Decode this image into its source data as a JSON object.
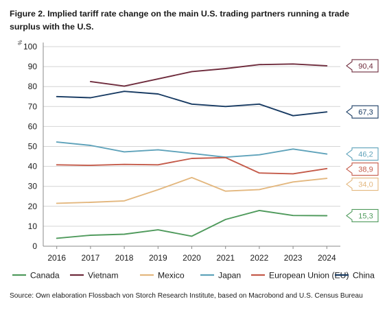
{
  "title": "Figure 2. Implied tariff rate change on the main U.S. trading partners running a trade surplus with the U.S.",
  "source": "Source: Own elaboration Flossbach von Storch Research Institute, based on Macrobond and U.S. Census Bureau",
  "chart_data": {
    "type": "line",
    "x": [
      2016,
      2017,
      2018,
      2019,
      2020,
      2021,
      2022,
      2023,
      2024
    ],
    "ylabel": "%",
    "ylim": [
      0,
      100
    ],
    "yticks": [
      0,
      10,
      20,
      30,
      40,
      50,
      60,
      70,
      80,
      90,
      100
    ],
    "grid": true,
    "legend": "bottom",
    "series": [
      {
        "name": "Canada",
        "color": "#4f9a5c",
        "values": [
          4.0,
          5.5,
          6.0,
          8.2,
          5.0,
          13.4,
          17.9,
          15.4,
          15.3
        ],
        "end_label": "15,3"
      },
      {
        "name": "Vietnam",
        "color": "#6e2b3c",
        "values": [
          null,
          82.5,
          80.2,
          83.8,
          87.5,
          89.0,
          91.0,
          91.3,
          90.4
        ],
        "end_label": "90,4"
      },
      {
        "name": "Mexico",
        "color": "#e3b77e",
        "values": [
          21.5,
          22.0,
          22.7,
          28.3,
          34.4,
          27.6,
          28.4,
          32.2,
          34.0
        ],
        "end_label": "34,0"
      },
      {
        "name": "Japan",
        "color": "#5ea2ba",
        "values": [
          52.2,
          50.5,
          47.3,
          48.3,
          46.5,
          44.6,
          45.8,
          48.7,
          46.2
        ],
        "end_label": "46,2"
      },
      {
        "name": "European Union (EU)",
        "color": "#c45a49",
        "values": [
          40.8,
          40.5,
          41.0,
          40.8,
          44.0,
          44.4,
          36.7,
          36.3,
          38.9
        ],
        "end_label": "38,9"
      },
      {
        "name": "China",
        "color": "#173a62",
        "values": [
          75.0,
          74.4,
          77.6,
          76.3,
          71.2,
          70.0,
          71.2,
          65.4,
          67.3
        ],
        "end_label": "67,3"
      }
    ]
  }
}
